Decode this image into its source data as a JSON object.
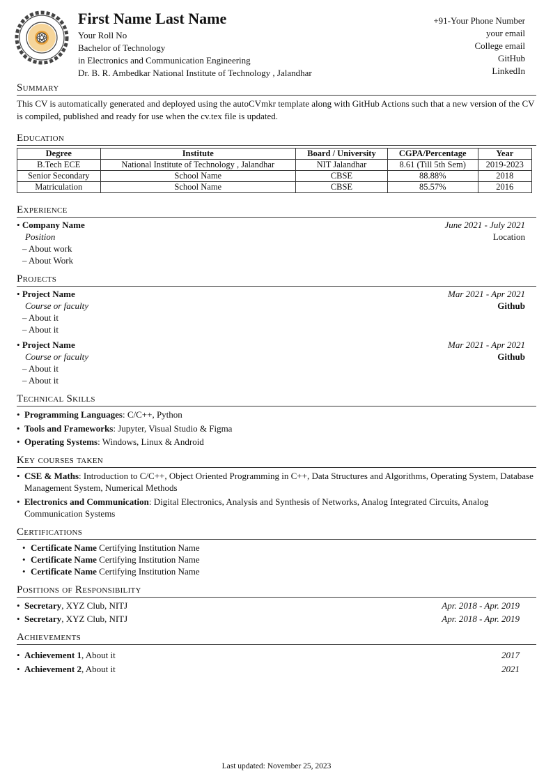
{
  "header": {
    "name": "First Name Last Name",
    "lines": [
      "Your Roll No",
      "Bachelor of Technology",
      "in Electronics and Communication Engineering",
      "Dr. B. R. Ambedkar National Institute of Technology , Jalandhar"
    ],
    "contact": [
      "+91-Your Phone Number",
      "your email",
      "College email",
      "GitHub",
      "LinkedIn"
    ],
    "logo_text": "Dr. B. R. Ambedkar National Institute of Technology Jalandhar"
  },
  "summary": {
    "title": "Summary",
    "text": "This CV is automatically generated and deployed using the autoCVmkr template along with GitHub Actions such that a new version of the CV is compiled, published and ready for use when the cv.tex file is updated."
  },
  "education": {
    "title": "Education",
    "columns": [
      "Degree",
      "Institute",
      "Board / University",
      "CGPA/Percentage",
      "Year"
    ],
    "rows": [
      [
        "B.Tech ECE",
        "National Institute of Technology , Jalandhar",
        "NIT Jalandhar",
        "8.61 (Till 5th Sem)",
        "2019-2023"
      ],
      [
        "Senior Secondary",
        "School Name",
        "CBSE",
        "88.88%",
        "2018"
      ],
      [
        "Matriculation",
        "School Name",
        "CBSE",
        "85.57%",
        "2016"
      ]
    ]
  },
  "experience": {
    "title": "Experience",
    "items": [
      {
        "name": "Company Name",
        "date": "June 2021 - July 2021",
        "role": "Position",
        "location": "Location",
        "points": [
          "About work",
          "About Work"
        ]
      }
    ]
  },
  "projects": {
    "title": "Projects",
    "items": [
      {
        "name": "Project Name",
        "date": "Mar 2021 - Apr 2021",
        "role": "Course or faculty",
        "link": "Github",
        "points": [
          "About it",
          "About it"
        ]
      },
      {
        "name": "Project Name",
        "date": "Mar 2021 - Apr 2021",
        "role": "Course or faculty",
        "link": "Github",
        "points": [
          "About it",
          "About it"
        ]
      }
    ]
  },
  "skills": {
    "title": "Technical Skills",
    "items": [
      {
        "label": "Programming Languages",
        "text": ": C/C++, Python"
      },
      {
        "label": "Tools and Frameworks",
        "text": ": Jupyter, Visual Studio & Figma"
      },
      {
        "label": "Operating Systems",
        "text": ": Windows, Linux & Android"
      }
    ]
  },
  "courses": {
    "title": "Key courses taken",
    "items": [
      {
        "label": "CSE & Maths",
        "text": ": Introduction to C/C++, Object Oriented Programming in C++, Data Structures and Algorithms, Operating System, Database Management System, Numerical Methods"
      },
      {
        "label": "Electronics and Communication",
        "text": ": Digital Electronics, Analysis and Synthesis of Networks, Analog Integrated Circuits, Analog Communication Systems"
      }
    ]
  },
  "certifications": {
    "title": "Certifications",
    "items": [
      {
        "label": "Certificate Name",
        "text": " Certifying Institution Name"
      },
      {
        "label": "Certificate Name",
        "text": " Certifying Institution Name"
      },
      {
        "label": "Certificate Name",
        "text": " Certifying Institution Name"
      }
    ]
  },
  "positions": {
    "title": "Positions of Responsibility",
    "items": [
      {
        "label": "Secretary",
        "text": ", XYZ Club, NITJ",
        "date": "Apr. 2018 - Apr. 2019"
      },
      {
        "label": "Secretary",
        "text": ", XYZ Club, NITJ",
        "date": "Apr. 2018 - Apr. 2019"
      }
    ]
  },
  "achievements": {
    "title": "Achievements",
    "items": [
      {
        "label": "Achievement 1",
        "text": ", About it",
        "date": "2017"
      },
      {
        "label": "Achievement 2",
        "text": ", About it",
        "date": "2021"
      }
    ]
  },
  "footer": "Last updated: November 25, 2023"
}
